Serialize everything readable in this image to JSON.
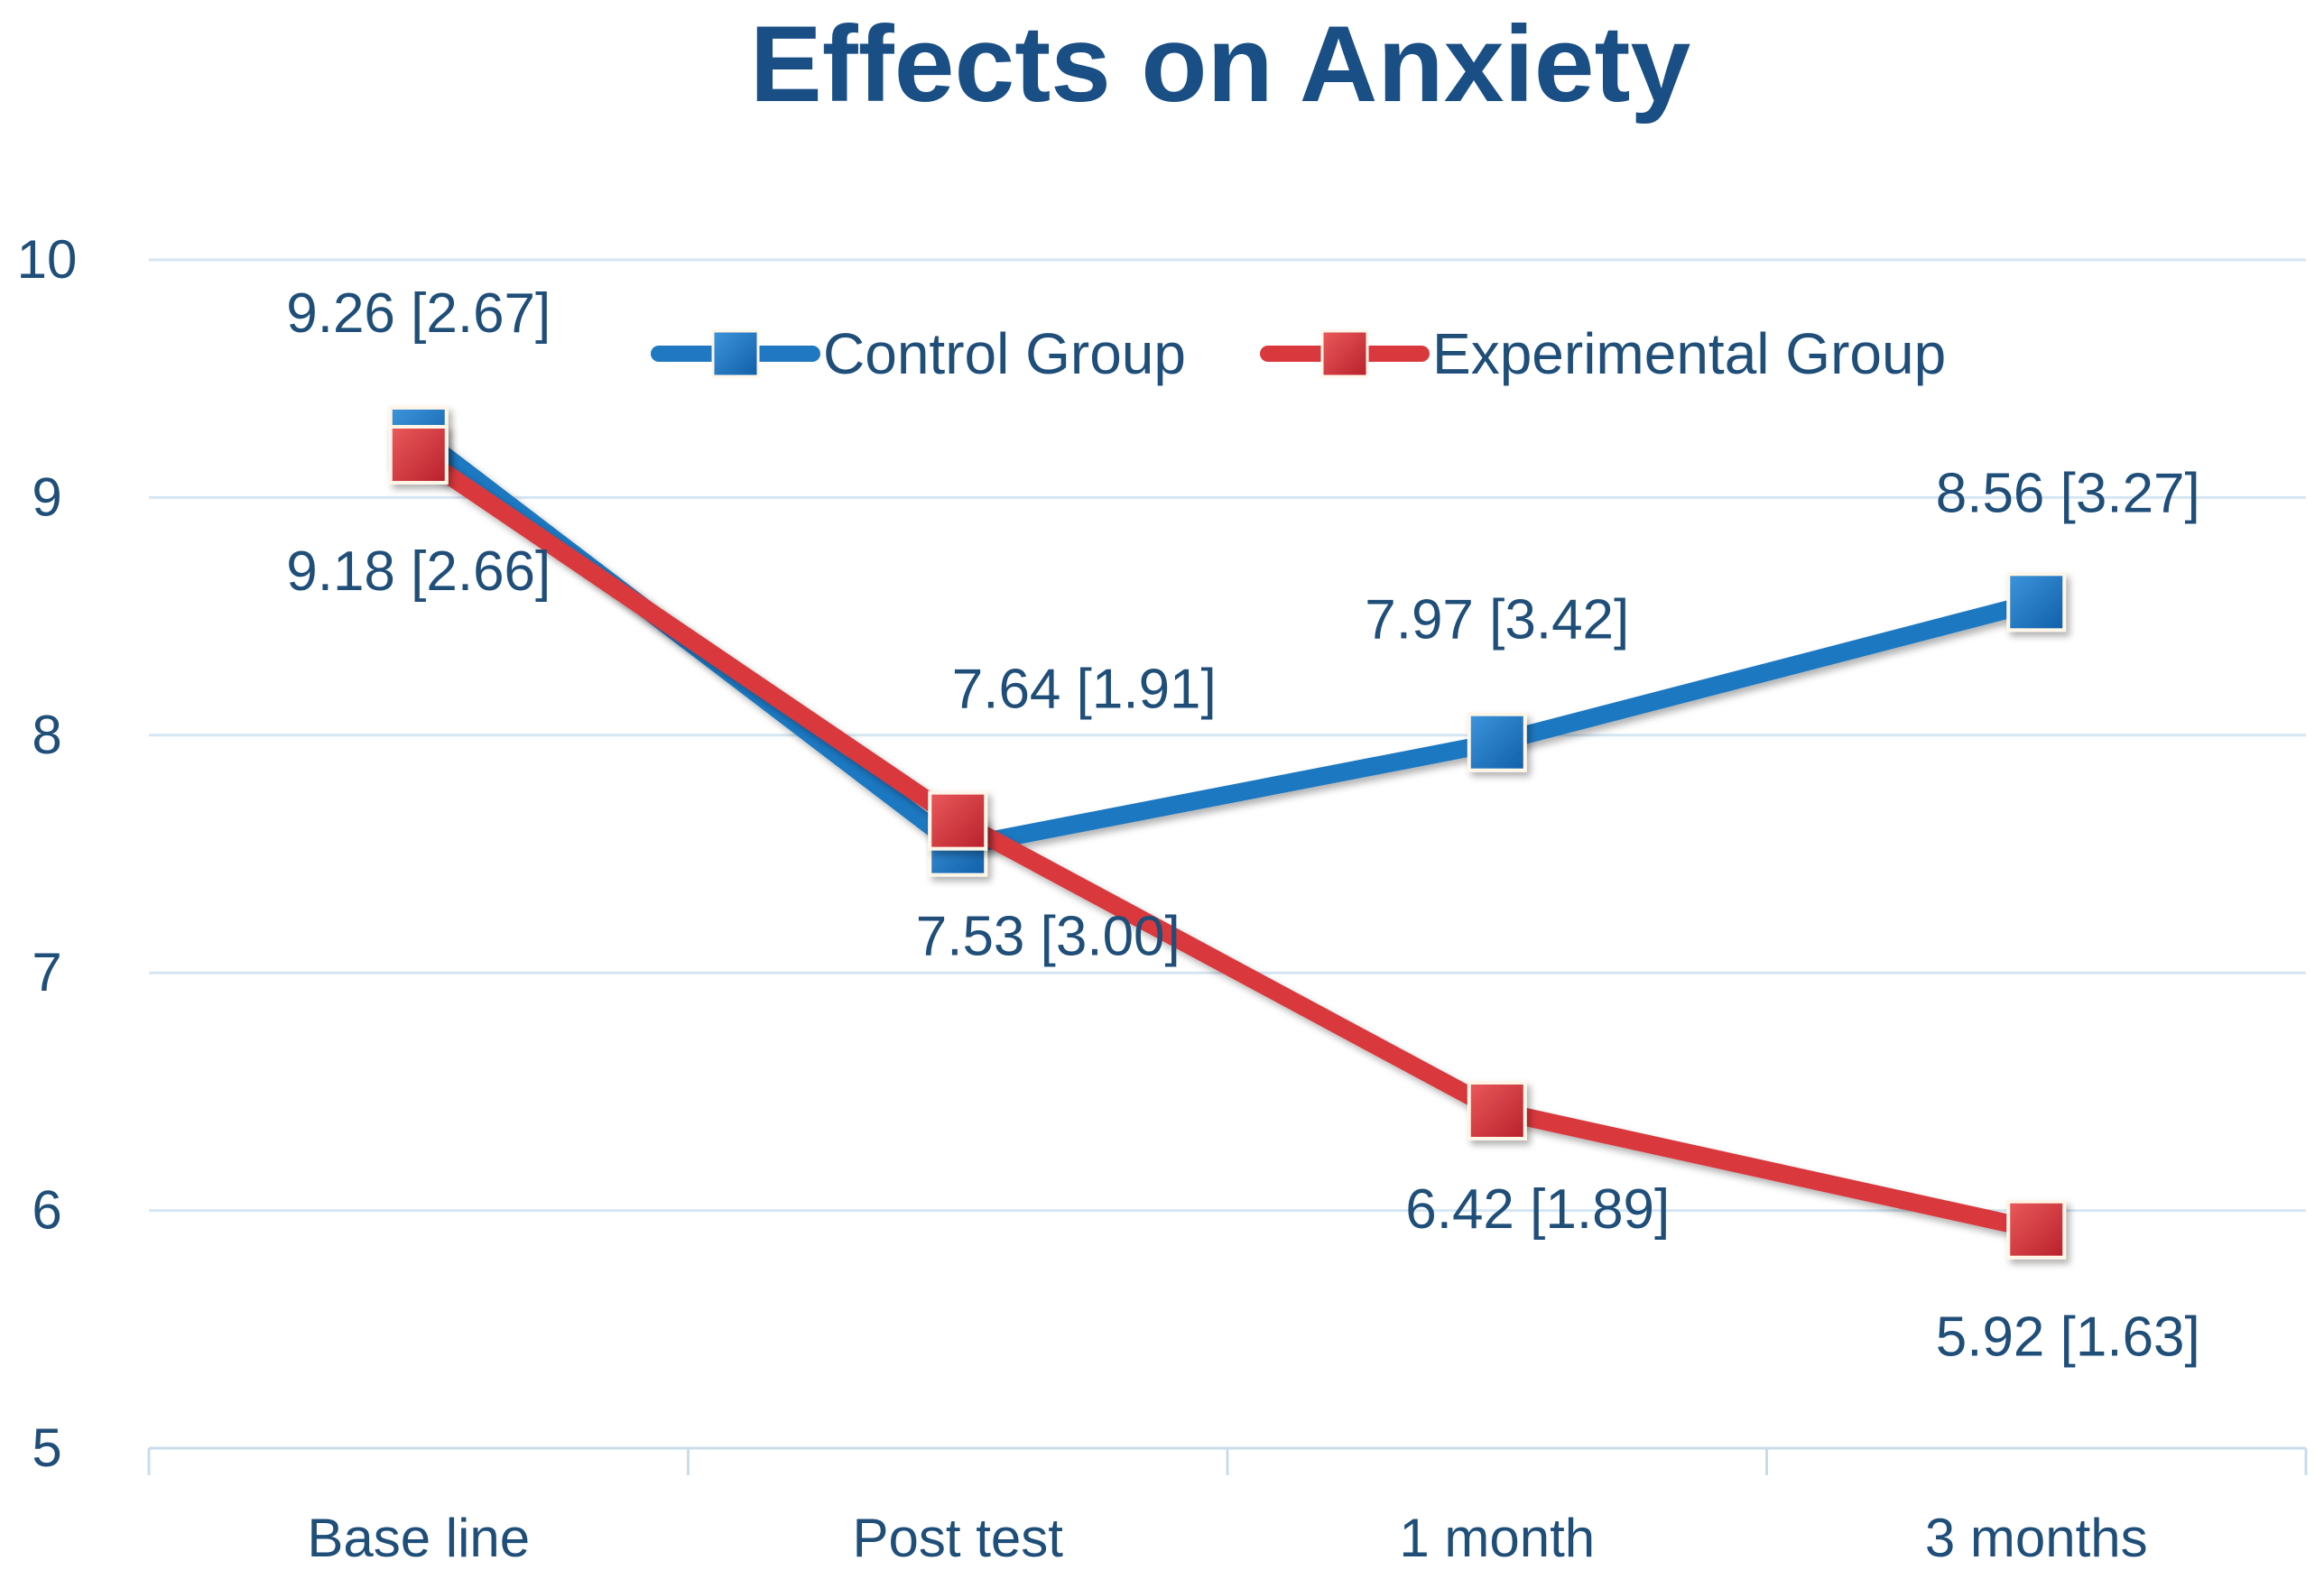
{
  "chart_data": {
    "type": "line",
    "title": "Effects on Anxiety",
    "xlabel": "",
    "ylabel": "",
    "categories": [
      "Base line",
      "Post test",
      "1 month",
      "3 months"
    ],
    "ylim": [
      5,
      10
    ],
    "yticks": [
      5,
      6,
      7,
      8,
      9,
      10
    ],
    "grid": true,
    "legend_position": "top",
    "series": [
      {
        "name": "Control Group",
        "color": "#1f78c1",
        "values": [
          9.26,
          7.53,
          7.97,
          8.56
        ],
        "labels": [
          "9.26 [2.67]",
          "7.53 [3.00]",
          "7.97 [3.42]",
          "8.56 [3.27]"
        ]
      },
      {
        "name": "Experimental Group",
        "color": "#d9393c",
        "values": [
          9.18,
          7.64,
          6.42,
          5.92
        ],
        "labels": [
          "9.18 [2.66]",
          "7.64 [1.91]",
          "6.42 [1.89]",
          "5.92 [1.63]"
        ]
      }
    ]
  },
  "colors": {
    "text": "#1f4e79",
    "title": "#1a4f86",
    "grid": "#d6e6f2",
    "axis": "#c9dcec"
  }
}
